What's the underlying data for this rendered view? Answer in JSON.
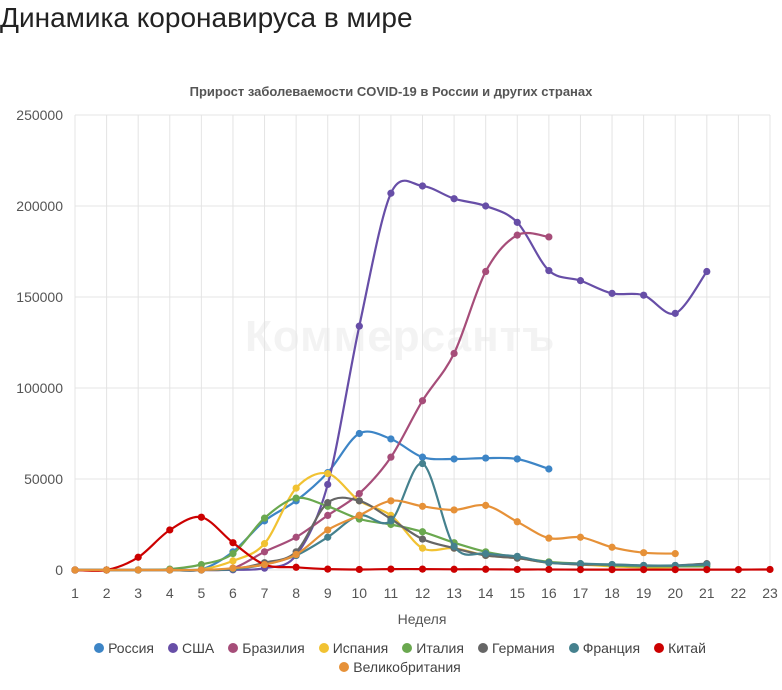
{
  "page": {
    "title": "Динамика коронавируса в мире"
  },
  "watermark": "Коммерсантъ",
  "chart_data": {
    "type": "line",
    "title": "Прирост заболеваемости COVID-19 в России и других странах",
    "xlabel": "Неделя",
    "ylabel": "",
    "x": [
      1,
      2,
      3,
      4,
      5,
      6,
      7,
      8,
      9,
      10,
      11,
      12,
      13,
      14,
      15,
      16,
      17,
      18,
      19,
      20,
      21,
      22,
      23
    ],
    "ylim": [
      0,
      250000
    ],
    "yticks": [
      "0",
      "50000",
      "100000",
      "150000",
      "200000",
      "250000"
    ],
    "xticks": [
      "1",
      "2",
      "3",
      "4",
      "5",
      "6",
      "7",
      "8",
      "9",
      "10",
      "11",
      "12",
      "13",
      "14",
      "15",
      "16",
      "17",
      "18",
      "19",
      "20",
      "21",
      "22",
      "23"
    ],
    "grid": true,
    "legend_position": "bottom",
    "series": [
      {
        "name": "Россия",
        "color": "#3d85c6",
        "points": [
          [
            1,
            0
          ],
          [
            2,
            0
          ],
          [
            3,
            0
          ],
          [
            4,
            0
          ],
          [
            5,
            300
          ],
          [
            6,
            10000
          ],
          [
            7,
            27000
          ],
          [
            8,
            38000
          ],
          [
            9,
            53500
          ],
          [
            10,
            75000
          ],
          [
            11,
            72000
          ],
          [
            12,
            62000
          ],
          [
            13,
            61000
          ],
          [
            14,
            61500
          ],
          [
            15,
            61000
          ],
          [
            16,
            55500
          ]
        ]
      },
      {
        "name": "США",
        "color": "#674ea7",
        "points": [
          [
            1,
            0
          ],
          [
            2,
            0
          ],
          [
            3,
            0
          ],
          [
            4,
            0
          ],
          [
            5,
            0
          ],
          [
            6,
            100
          ],
          [
            7,
            1000
          ],
          [
            8,
            8000
          ],
          [
            9,
            47000
          ],
          [
            10,
            134000
          ],
          [
            11,
            207000
          ],
          [
            12,
            211000
          ],
          [
            13,
            204000
          ],
          [
            14,
            200000
          ],
          [
            15,
            191000
          ],
          [
            16,
            164500
          ],
          [
            17,
            159000
          ],
          [
            18,
            152000
          ],
          [
            19,
            151000
          ],
          [
            20,
            141000
          ],
          [
            21,
            164000
          ]
        ]
      },
      {
        "name": "Бразилия",
        "color": "#a64d79",
        "points": [
          [
            1,
            0
          ],
          [
            2,
            0
          ],
          [
            3,
            0
          ],
          [
            4,
            0
          ],
          [
            5,
            0
          ],
          [
            6,
            1000
          ],
          [
            7,
            10000
          ],
          [
            8,
            18000
          ],
          [
            9,
            30000
          ],
          [
            10,
            42000
          ],
          [
            11,
            62000
          ],
          [
            12,
            93000
          ],
          [
            13,
            119000
          ],
          [
            14,
            164000
          ],
          [
            15,
            184000
          ],
          [
            16,
            183000
          ]
        ]
      },
      {
        "name": "Испания",
        "color": "#f1c232",
        "points": [
          [
            1,
            0
          ],
          [
            2,
            0
          ],
          [
            3,
            0
          ],
          [
            4,
            0
          ],
          [
            5,
            300
          ],
          [
            6,
            5000
          ],
          [
            7,
            14500
          ],
          [
            8,
            45000
          ],
          [
            9,
            53000
          ],
          [
            10,
            38000
          ],
          [
            11,
            30000
          ],
          [
            12,
            12000
          ],
          [
            13,
            12000
          ],
          [
            14,
            8000
          ],
          [
            15,
            6500
          ],
          [
            16,
            4000
          ],
          [
            17,
            3000
          ],
          [
            18,
            2000
          ],
          [
            19,
            1500
          ],
          [
            20,
            1500
          ]
        ]
      },
      {
        "name": "Италия",
        "color": "#6aa84f",
        "points": [
          [
            1,
            0
          ],
          [
            2,
            0
          ],
          [
            3,
            0
          ],
          [
            4,
            500
          ],
          [
            5,
            3000
          ],
          [
            6,
            9000
          ],
          [
            7,
            28500
          ],
          [
            8,
            39500
          ],
          [
            9,
            35000
          ],
          [
            10,
            28000
          ],
          [
            11,
            25000
          ],
          [
            12,
            21000
          ],
          [
            13,
            15000
          ],
          [
            14,
            10000
          ],
          [
            15,
            7000
          ],
          [
            16,
            4500
          ],
          [
            17,
            3500
          ],
          [
            18,
            2500
          ],
          [
            19,
            2000
          ],
          [
            20,
            2000
          ],
          [
            21,
            2000
          ]
        ]
      },
      {
        "name": "Германия",
        "color": "#666666",
        "points": [
          [
            1,
            0
          ],
          [
            2,
            0
          ],
          [
            3,
            0
          ],
          [
            4,
            0
          ],
          [
            5,
            0
          ],
          [
            6,
            500
          ],
          [
            7,
            4000
          ],
          [
            8,
            10000
          ],
          [
            9,
            37000
          ],
          [
            10,
            38000
          ],
          [
            11,
            28000
          ],
          [
            12,
            17000
          ],
          [
            13,
            12000
          ],
          [
            14,
            8000
          ],
          [
            15,
            6500
          ],
          [
            16,
            4000
          ],
          [
            17,
            3000
          ],
          [
            18,
            3000
          ],
          [
            19,
            2500
          ],
          [
            20,
            2500
          ],
          [
            21,
            3500
          ]
        ]
      },
      {
        "name": "Франция",
        "color": "#45818e",
        "points": [
          [
            1,
            0
          ],
          [
            2,
            0
          ],
          [
            3,
            0
          ],
          [
            4,
            0
          ],
          [
            5,
            0
          ],
          [
            6,
            500
          ],
          [
            7,
            3000
          ],
          [
            8,
            8000
          ],
          [
            9,
            18000
          ],
          [
            10,
            30000
          ],
          [
            11,
            27000
          ],
          [
            12,
            58500
          ],
          [
            13,
            13000
          ],
          [
            14,
            9000
          ],
          [
            15,
            7500
          ],
          [
            16,
            4000
          ],
          [
            17,
            3500
          ],
          [
            18,
            3000
          ],
          [
            19,
            2500
          ],
          [
            20,
            2500
          ],
          [
            21,
            3000
          ]
        ]
      },
      {
        "name": "Китай",
        "color": "#cc0000",
        "points": [
          [
            1,
            0
          ],
          [
            2,
            0
          ],
          [
            3,
            7000
          ],
          [
            4,
            22000
          ],
          [
            5,
            29000
          ],
          [
            6,
            15000
          ],
          [
            7,
            3000
          ],
          [
            8,
            1500
          ],
          [
            9,
            500
          ],
          [
            10,
            300
          ],
          [
            11,
            500
          ],
          [
            12,
            500
          ],
          [
            13,
            400
          ],
          [
            14,
            400
          ],
          [
            15,
            300
          ],
          [
            16,
            300
          ],
          [
            17,
            200
          ],
          [
            18,
            200
          ],
          [
            19,
            200
          ],
          [
            20,
            200
          ],
          [
            21,
            200
          ],
          [
            22,
            200
          ],
          [
            23,
            300
          ]
        ]
      },
      {
        "name": "Великобритания",
        "color": "#e69138",
        "points": [
          [
            1,
            0
          ],
          [
            2,
            0
          ],
          [
            3,
            0
          ],
          [
            4,
            0
          ],
          [
            5,
            0
          ],
          [
            6,
            1000
          ],
          [
            7,
            3000
          ],
          [
            8,
            8500
          ],
          [
            9,
            22000
          ],
          [
            10,
            30000
          ],
          [
            11,
            38000
          ],
          [
            12,
            35000
          ],
          [
            13,
            33000
          ],
          [
            14,
            35500
          ],
          [
            15,
            26500
          ],
          [
            16,
            17500
          ],
          [
            17,
            18000
          ],
          [
            18,
            12500
          ],
          [
            19,
            9500
          ],
          [
            20,
            9000
          ]
        ]
      }
    ]
  }
}
